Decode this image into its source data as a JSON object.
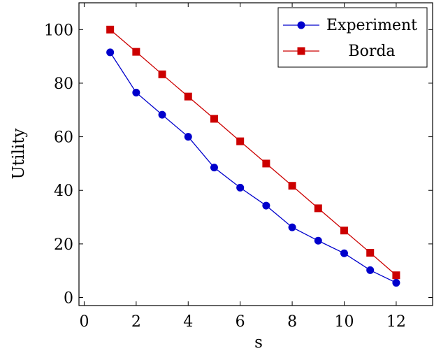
{
  "chart_data": {
    "type": "line",
    "xlabel": "s",
    "ylabel": "Utility",
    "xlim": [
      -0.2,
      13.4
    ],
    "ylim": [
      -3,
      110
    ],
    "xticks": [
      0,
      2,
      4,
      6,
      8,
      10,
      12
    ],
    "yticks": [
      0,
      20,
      40,
      60,
      80,
      100
    ],
    "x": [
      1,
      2,
      3,
      4,
      5,
      6,
      7,
      8,
      9,
      10,
      11,
      12
    ],
    "legend_position": "top-right",
    "series": [
      {
        "name": "Experiment",
        "color": "#0000cc",
        "marker": "circle",
        "values": [
          91.5,
          76.5,
          68.2,
          60,
          48.5,
          41,
          34.3,
          26.2,
          21.2,
          16.5,
          10.2,
          5.5
        ]
      },
      {
        "name": "Borda",
        "color": "#cc0000",
        "marker": "square",
        "values": [
          100,
          91.7,
          83.3,
          75,
          66.7,
          58.3,
          50,
          41.7,
          33.3,
          25,
          16.7,
          8.3
        ]
      }
    ]
  }
}
